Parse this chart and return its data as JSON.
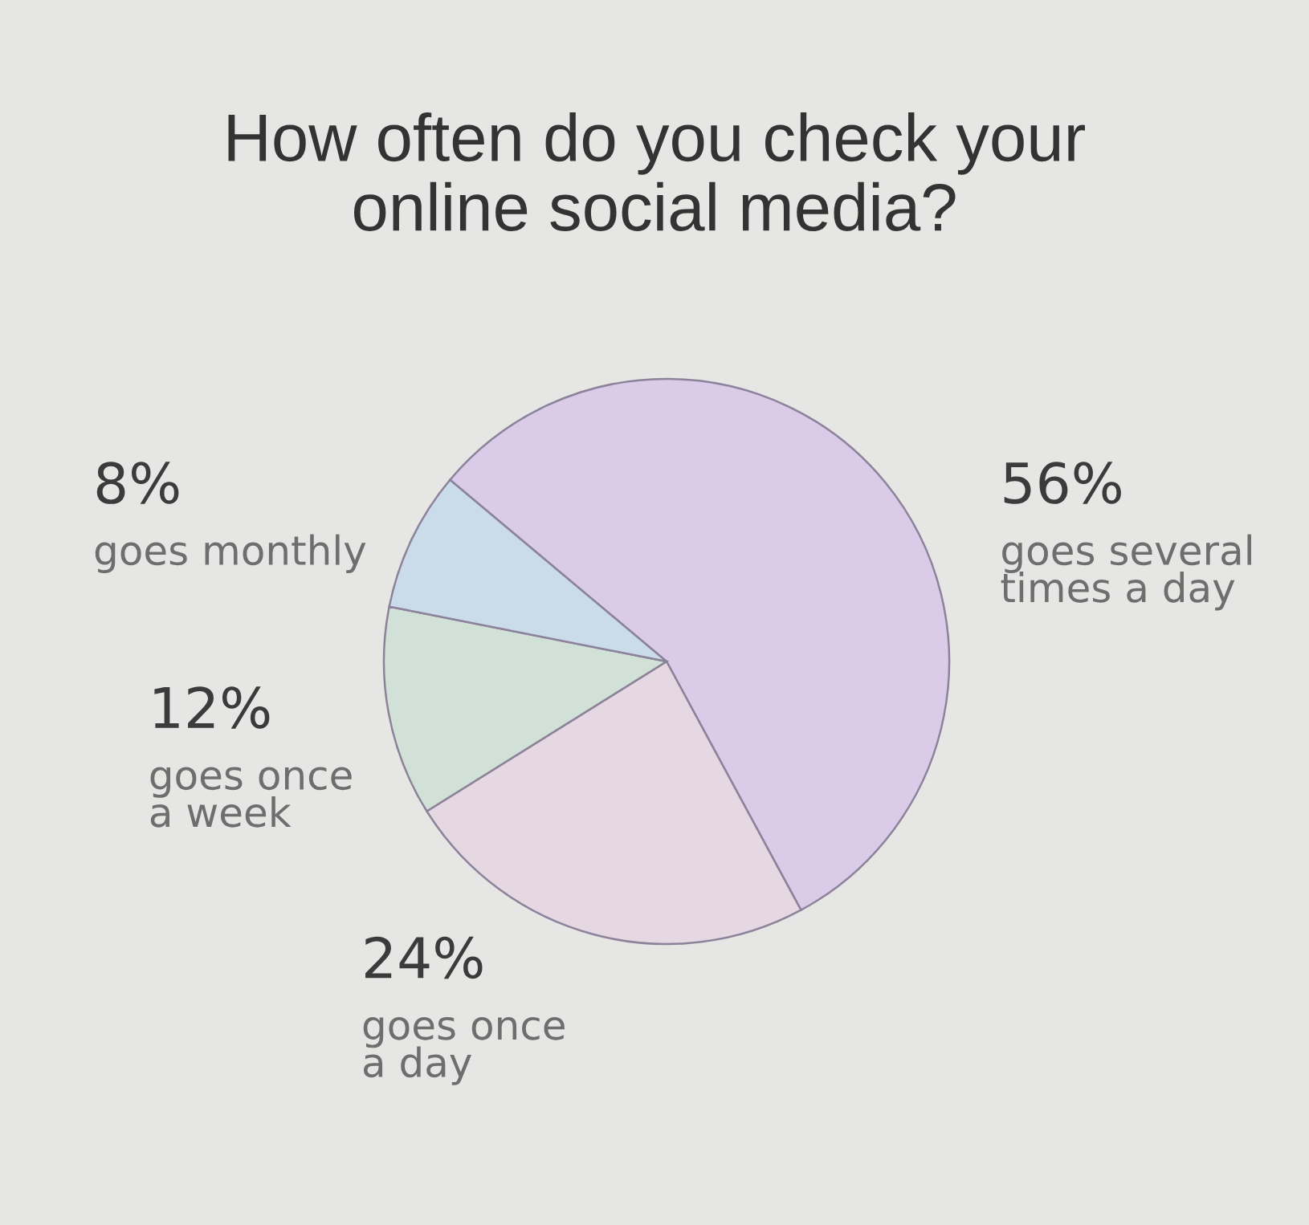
{
  "chart_data": {
    "type": "pie",
    "title": "How often do you check your\nonline social media?",
    "categories": [
      "goes several\ntimes a day",
      "goes once\na day",
      "goes once\na week",
      "goes monthly"
    ],
    "values": [
      56,
      24,
      12,
      8
    ],
    "colors": [
      "#dacbe8",
      "#e6d8e2",
      "#d2e1d8",
      "#cadbe9"
    ],
    "value_labels": [
      "56%",
      "24%",
      "12%",
      "8%"
    ]
  }
}
